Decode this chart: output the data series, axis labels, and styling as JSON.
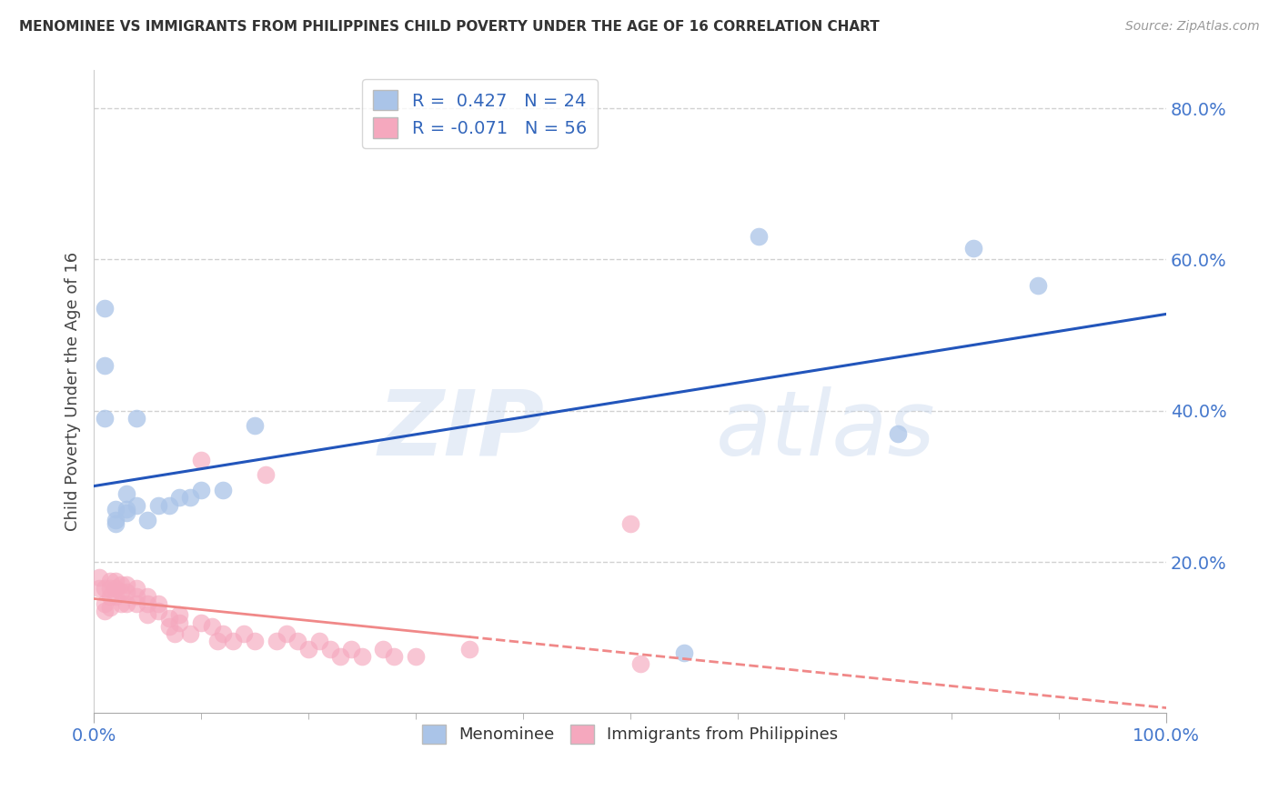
{
  "title": "MENOMINEE VS IMMIGRANTS FROM PHILIPPINES CHILD POVERTY UNDER THE AGE OF 16 CORRELATION CHART",
  "source": "Source: ZipAtlas.com",
  "ylabel": "Child Poverty Under the Age of 16",
  "xlim": [
    0,
    1.0
  ],
  "ylim": [
    0,
    0.85
  ],
  "menominee_R": 0.427,
  "menominee_N": 24,
  "philippines_R": -0.071,
  "philippines_N": 56,
  "menominee_color": "#aac4e8",
  "philippines_color": "#f5a8be",
  "menominee_line_color": "#2255bb",
  "philippines_line_color": "#f08888",
  "legend_labels": [
    "Menominee",
    "Immigrants from Philippines"
  ],
  "watermark_zip": "ZIP",
  "watermark_atlas": "atlas",
  "background_color": "#ffffff",
  "grid_color": "#cccccc",
  "menominee_x": [
    0.01,
    0.01,
    0.02,
    0.02,
    0.03,
    0.03,
    0.04,
    0.04,
    0.05,
    0.06,
    0.07,
    0.08,
    0.09,
    0.1,
    0.12,
    0.15,
    0.55,
    0.62,
    0.75,
    0.82,
    0.88,
    0.01,
    0.02,
    0.03
  ],
  "menominee_y": [
    0.535,
    0.46,
    0.255,
    0.27,
    0.265,
    0.29,
    0.275,
    0.39,
    0.255,
    0.275,
    0.275,
    0.285,
    0.285,
    0.295,
    0.295,
    0.38,
    0.08,
    0.63,
    0.37,
    0.615,
    0.565,
    0.39,
    0.25,
    0.27
  ],
  "philippines_x": [
    0.005,
    0.005,
    0.01,
    0.01,
    0.01,
    0.015,
    0.015,
    0.015,
    0.015,
    0.02,
    0.02,
    0.02,
    0.025,
    0.025,
    0.025,
    0.03,
    0.03,
    0.03,
    0.04,
    0.04,
    0.04,
    0.05,
    0.05,
    0.05,
    0.06,
    0.06,
    0.07,
    0.07,
    0.075,
    0.08,
    0.08,
    0.09,
    0.1,
    0.1,
    0.11,
    0.115,
    0.12,
    0.13,
    0.14,
    0.15,
    0.16,
    0.17,
    0.18,
    0.19,
    0.2,
    0.21,
    0.22,
    0.23,
    0.24,
    0.25,
    0.27,
    0.28,
    0.3,
    0.35,
    0.5,
    0.51
  ],
  "philippines_y": [
    0.165,
    0.18,
    0.135,
    0.145,
    0.165,
    0.14,
    0.155,
    0.165,
    0.175,
    0.155,
    0.165,
    0.175,
    0.145,
    0.16,
    0.17,
    0.145,
    0.16,
    0.17,
    0.145,
    0.155,
    0.165,
    0.13,
    0.145,
    0.155,
    0.135,
    0.145,
    0.115,
    0.125,
    0.105,
    0.12,
    0.13,
    0.105,
    0.12,
    0.335,
    0.115,
    0.095,
    0.105,
    0.095,
    0.105,
    0.095,
    0.315,
    0.095,
    0.105,
    0.095,
    0.085,
    0.095,
    0.085,
    0.075,
    0.085,
    0.075,
    0.085,
    0.075,
    0.075,
    0.085,
    0.25,
    0.065
  ]
}
